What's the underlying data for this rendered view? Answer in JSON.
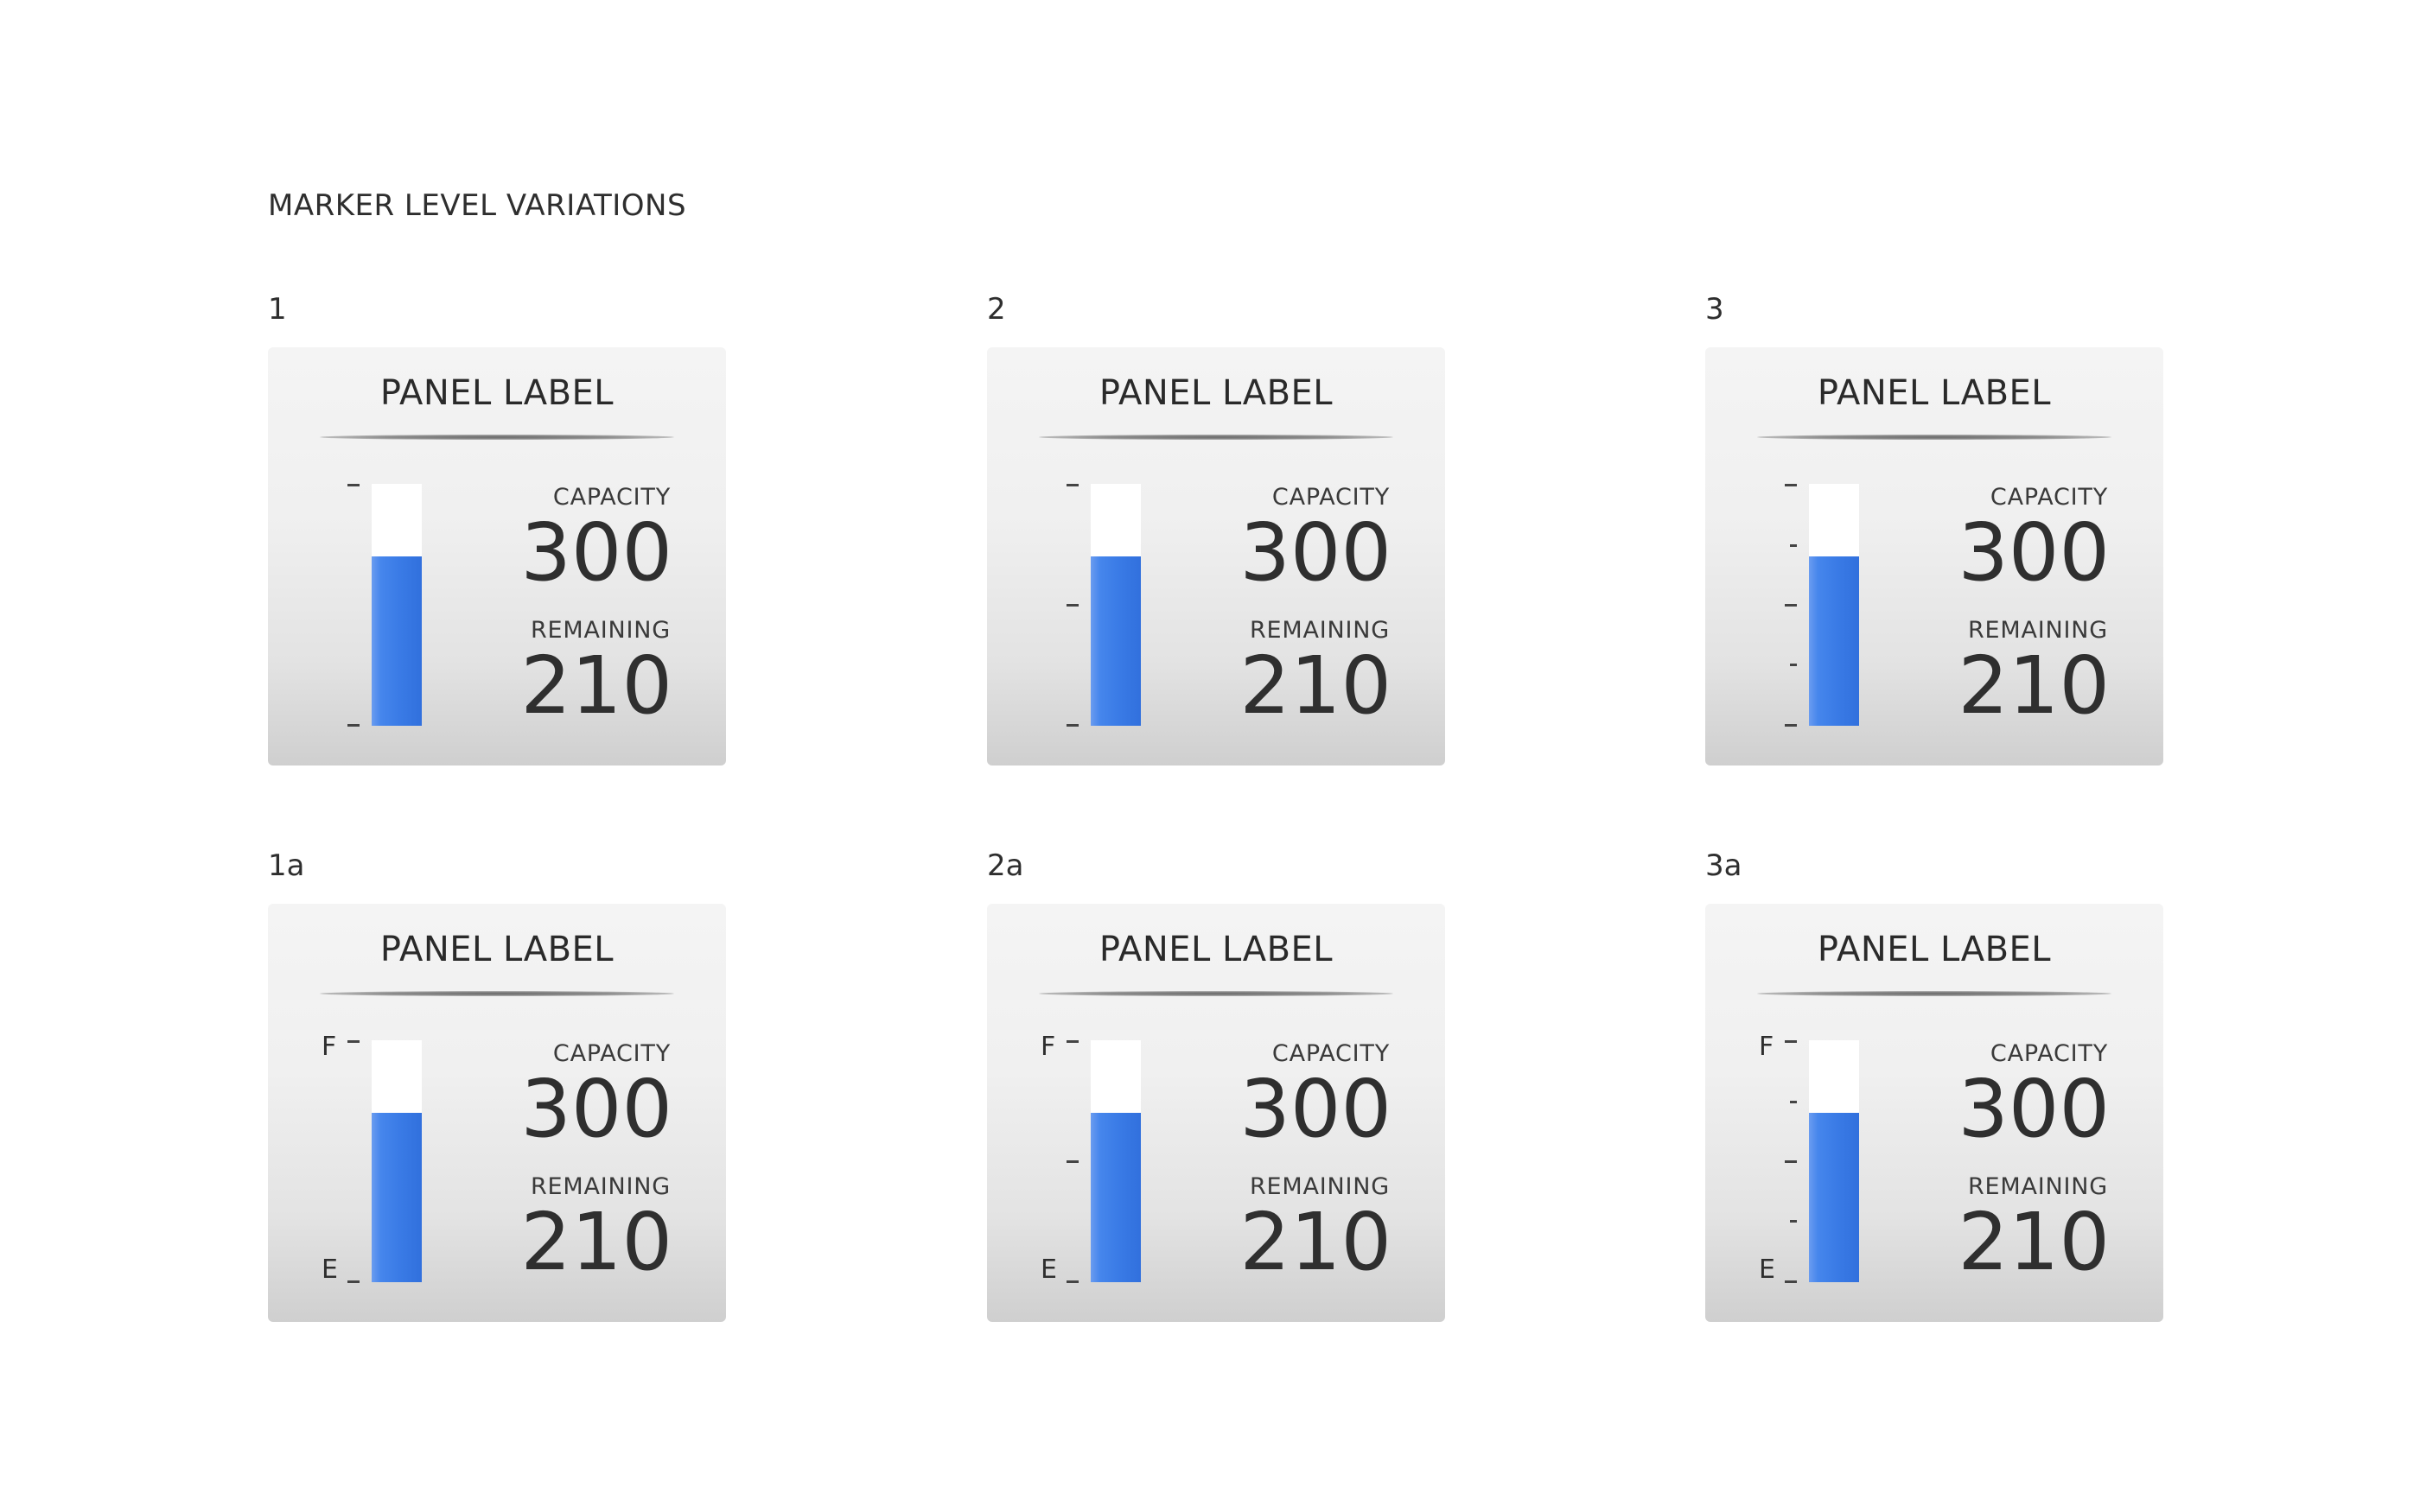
{
  "page": {
    "title": "MARKER LEVEL VARIATIONS"
  },
  "variants": [
    {
      "id": "1",
      "panel_label": "PANEL LABEL",
      "capacity_label": "CAPACITY",
      "capacity_value": "300",
      "remaining_label": "REMAINING",
      "remaining_value": "210",
      "fill_fraction": 0.7,
      "scale": {
        "full_letter": "",
        "empty_letter": "",
        "middle_marker": false,
        "quarter_markers": false
      }
    },
    {
      "id": "2",
      "panel_label": "PANEL LABEL",
      "capacity_label": "CAPACITY",
      "capacity_value": "300",
      "remaining_label": "REMAINING",
      "remaining_value": "210",
      "fill_fraction": 0.7,
      "scale": {
        "full_letter": "",
        "empty_letter": "",
        "middle_marker": true,
        "quarter_markers": false
      }
    },
    {
      "id": "3",
      "panel_label": "PANEL LABEL",
      "capacity_label": "CAPACITY",
      "capacity_value": "300",
      "remaining_label": "REMAINING",
      "remaining_value": "210",
      "fill_fraction": 0.7,
      "scale": {
        "full_letter": "",
        "empty_letter": "",
        "middle_marker": true,
        "quarter_markers": true
      }
    },
    {
      "id": "1a",
      "panel_label": "PANEL LABEL",
      "capacity_label": "CAPACITY",
      "capacity_value": "300",
      "remaining_label": "REMAINING",
      "remaining_value": "210",
      "fill_fraction": 0.7,
      "scale": {
        "full_letter": "F",
        "empty_letter": "E",
        "middle_marker": false,
        "quarter_markers": false
      }
    },
    {
      "id": "2a",
      "panel_label": "PANEL LABEL",
      "capacity_label": "CAPACITY",
      "capacity_value": "300",
      "remaining_label": "REMAINING",
      "remaining_value": "210",
      "fill_fraction": 0.7,
      "scale": {
        "full_letter": "F",
        "empty_letter": "E",
        "middle_marker": true,
        "quarter_markers": false
      }
    },
    {
      "id": "3a",
      "panel_label": "PANEL LABEL",
      "capacity_label": "CAPACITY",
      "capacity_value": "300",
      "remaining_label": "REMAINING",
      "remaining_value": "210",
      "fill_fraction": 0.7,
      "scale": {
        "full_letter": "F",
        "empty_letter": "E",
        "middle_marker": true,
        "quarter_markers": true
      }
    }
  ],
  "colors": {
    "gauge_fill": "#3a7be6",
    "gauge_empty": "#ffffff",
    "panel_background": "#f0f0f0",
    "text": "#333333"
  }
}
